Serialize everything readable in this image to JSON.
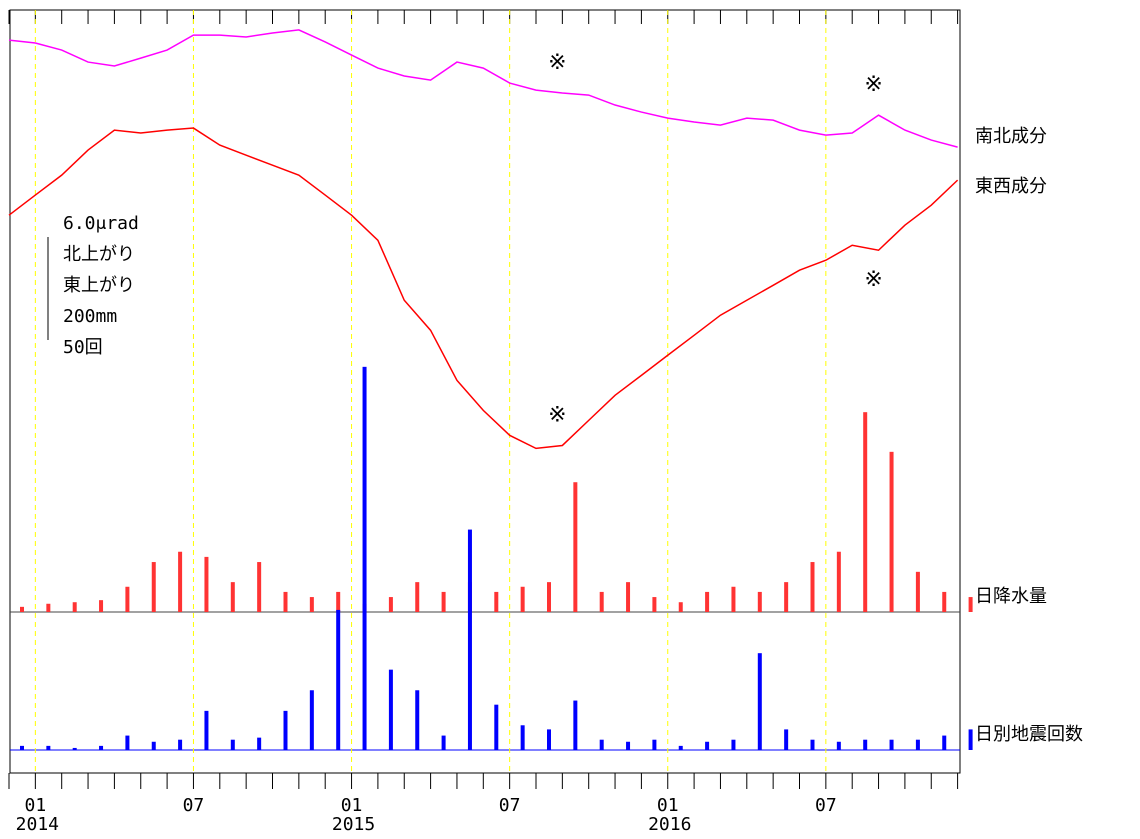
{
  "chart_data": {
    "type": "line",
    "x": [
      "2013-12",
      "2014-01",
      "2014-02",
      "2014-03",
      "2014-04",
      "2014-05",
      "2014-06",
      "2014-07",
      "2014-08",
      "2014-09",
      "2014-10",
      "2014-11",
      "2014-12",
      "2015-01",
      "2015-02",
      "2015-03",
      "2015-04",
      "2015-05",
      "2015-06",
      "2015-07",
      "2015-08",
      "2015-09",
      "2015-10",
      "2015-11",
      "2015-12",
      "2016-01",
      "2016-02",
      "2016-03",
      "2016-04",
      "2016-05",
      "2016-06",
      "2016-07",
      "2016-08",
      "2016-09",
      "2016-10",
      "2016-11",
      "2016-12"
    ],
    "xticks": [
      {
        "value": "2014-01",
        "label": "01"
      },
      {
        "value": "2014-07",
        "label": "07"
      },
      {
        "value": "2015-01",
        "label": "01"
      },
      {
        "value": "2015-07",
        "label": "07"
      },
      {
        "value": "2016-01",
        "label": "01"
      },
      {
        "value": "2016-07",
        "label": "07"
      }
    ],
    "year_labels": [
      {
        "value": "2014-01",
        "label": "2014"
      },
      {
        "value": "2015-01",
        "label": "2015"
      },
      {
        "value": "2016-01",
        "label": "2016"
      }
    ],
    "grid": true,
    "series": [
      {
        "name": "南北成分",
        "type": "line",
        "color": "#ff00ff",
        "ylim": [
          0,
          27
        ],
        "values": [
          25.25,
          25.08,
          24.67,
          23.97,
          23.74,
          24.2,
          24.67,
          25.54,
          25.54,
          25.43,
          25.66,
          25.84,
          25.14,
          24.38,
          23.62,
          23.16,
          22.92,
          23.97,
          23.62,
          22.75,
          22.34,
          22.17,
          22.05,
          21.47,
          21.06,
          20.71,
          20.48,
          20.3,
          20.71,
          20.59,
          20.01,
          19.72,
          19.84,
          20.88,
          20.01,
          19.43,
          19.02
        ]
      },
      {
        "name": "東西成分",
        "type": "line",
        "color": "#ff0000",
        "ylim": [
          0,
          27
        ],
        "values": [
          15.06,
          16.23,
          17.39,
          18.85,
          20.01,
          19.84,
          20.01,
          20.13,
          19.14,
          18.55,
          17.97,
          17.39,
          16.23,
          15.06,
          13.6,
          10.11,
          8.36,
          5.45,
          3.7,
          2.25,
          1.49,
          1.66,
          3.12,
          4.58,
          5.74,
          6.91,
          8.07,
          9.24,
          10.11,
          10.98,
          11.86,
          12.44,
          13.31,
          13.02,
          14.48,
          15.64,
          17.1
        ]
      },
      {
        "name": "日降水量",
        "type": "bar",
        "color": "#ff3333",
        "ylim": [
          0,
          400
        ],
        "values": [
          10,
          16,
          19,
          23,
          49,
          97,
          117,
          107,
          58,
          97,
          39,
          29,
          39,
          16,
          29,
          58,
          39,
          58,
          39,
          49,
          58,
          252,
          39,
          58,
          29,
          19,
          39,
          49,
          39,
          58,
          97,
          117,
          388,
          311,
          78,
          39,
          29
        ]
      },
      {
        "name": "日別地震回数",
        "type": "bar",
        "color": "#0000ff",
        "ylim": [
          0,
          200
        ],
        "values": [
          2,
          2,
          1,
          2,
          7,
          4,
          5,
          19,
          5,
          6,
          19,
          29,
          68,
          186,
          39,
          29,
          7,
          107,
          22,
          12,
          10,
          24,
          5,
          4,
          5,
          2,
          4,
          5,
          47,
          10,
          5,
          4,
          5,
          5,
          5,
          7,
          10
        ]
      }
    ],
    "annotations": [
      {
        "text": "※",
        "series": 0,
        "x": "2015-09",
        "position": "above"
      },
      {
        "text": "※",
        "series": 0,
        "x": "2016-09",
        "position": "above"
      },
      {
        "text": "※",
        "series": 1,
        "x": "2015-09",
        "position": "above"
      },
      {
        "text": "※",
        "series": 1,
        "x": "2016-09",
        "position": "below"
      }
    ],
    "scale_labels": [
      "6.0μrad",
      "北上がり",
      "東上がり",
      "200mm",
      "50回"
    ]
  }
}
